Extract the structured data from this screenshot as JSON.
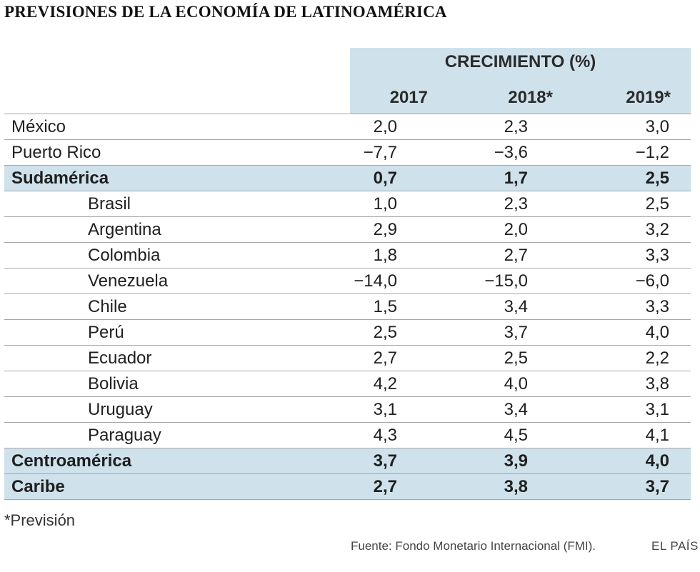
{
  "title": "PREVISIONES DE LA ECONOMÍA DE LATINOAMÉRICA",
  "chart_data": {
    "type": "table",
    "title": "PREVISIONES DE LA ECONOMÍA DE LATINOAMÉRICA",
    "group_header": "CRECIMIENTO (%)",
    "columns": [
      "2017",
      "2018*",
      "2019*"
    ],
    "highlight_color": "#cfe2ec",
    "rows": [
      {
        "name": "México",
        "level": 0,
        "highlight": false,
        "values": [
          "2,0",
          "2,3",
          "3,0"
        ]
      },
      {
        "name": "Puerto Rico",
        "level": 0,
        "highlight": false,
        "values": [
          "−7,7",
          "−3,6",
          "−1,2"
        ]
      },
      {
        "name": "Sudamérica",
        "level": 0,
        "highlight": true,
        "values": [
          "0,7",
          "1,7",
          "2,5"
        ]
      },
      {
        "name": "Brasil",
        "level": 1,
        "highlight": false,
        "values": [
          "1,0",
          "2,3",
          "2,5"
        ]
      },
      {
        "name": "Argentina",
        "level": 1,
        "highlight": false,
        "values": [
          "2,9",
          "2,0",
          "3,2"
        ]
      },
      {
        "name": "Colombia",
        "level": 1,
        "highlight": false,
        "values": [
          "1,8",
          "2,7",
          "3,3"
        ]
      },
      {
        "name": "Venezuela",
        "level": 1,
        "highlight": false,
        "values": [
          "−14,0",
          "−15,0",
          "−6,0"
        ]
      },
      {
        "name": "Chile",
        "level": 1,
        "highlight": false,
        "values": [
          "1,5",
          "3,4",
          "3,3"
        ]
      },
      {
        "name": "Perú",
        "level": 1,
        "highlight": false,
        "values": [
          "2,5",
          "3,7",
          "4,0"
        ]
      },
      {
        "name": "Ecuador",
        "level": 1,
        "highlight": false,
        "values": [
          "2,7",
          "2,5",
          "2,2"
        ]
      },
      {
        "name": "Bolivia",
        "level": 1,
        "highlight": false,
        "values": [
          "4,2",
          "4,0",
          "3,8"
        ]
      },
      {
        "name": "Uruguay",
        "level": 1,
        "highlight": false,
        "values": [
          "3,1",
          "3,4",
          "3,1"
        ]
      },
      {
        "name": "Paraguay",
        "level": 1,
        "highlight": false,
        "values": [
          "4,3",
          "4,5",
          "4,1"
        ]
      },
      {
        "name": "Centroamérica",
        "level": 0,
        "highlight": true,
        "values": [
          "3,7",
          "3,9",
          "4,0"
        ]
      },
      {
        "name": "Caribe",
        "level": 0,
        "highlight": true,
        "values": [
          "2,7",
          "3,8",
          "3,7"
        ]
      }
    ]
  },
  "footnote": "*Previsión",
  "source": "Fuente: Fondo Monetario Internacional (FMI).",
  "brand": "EL PAÍS"
}
